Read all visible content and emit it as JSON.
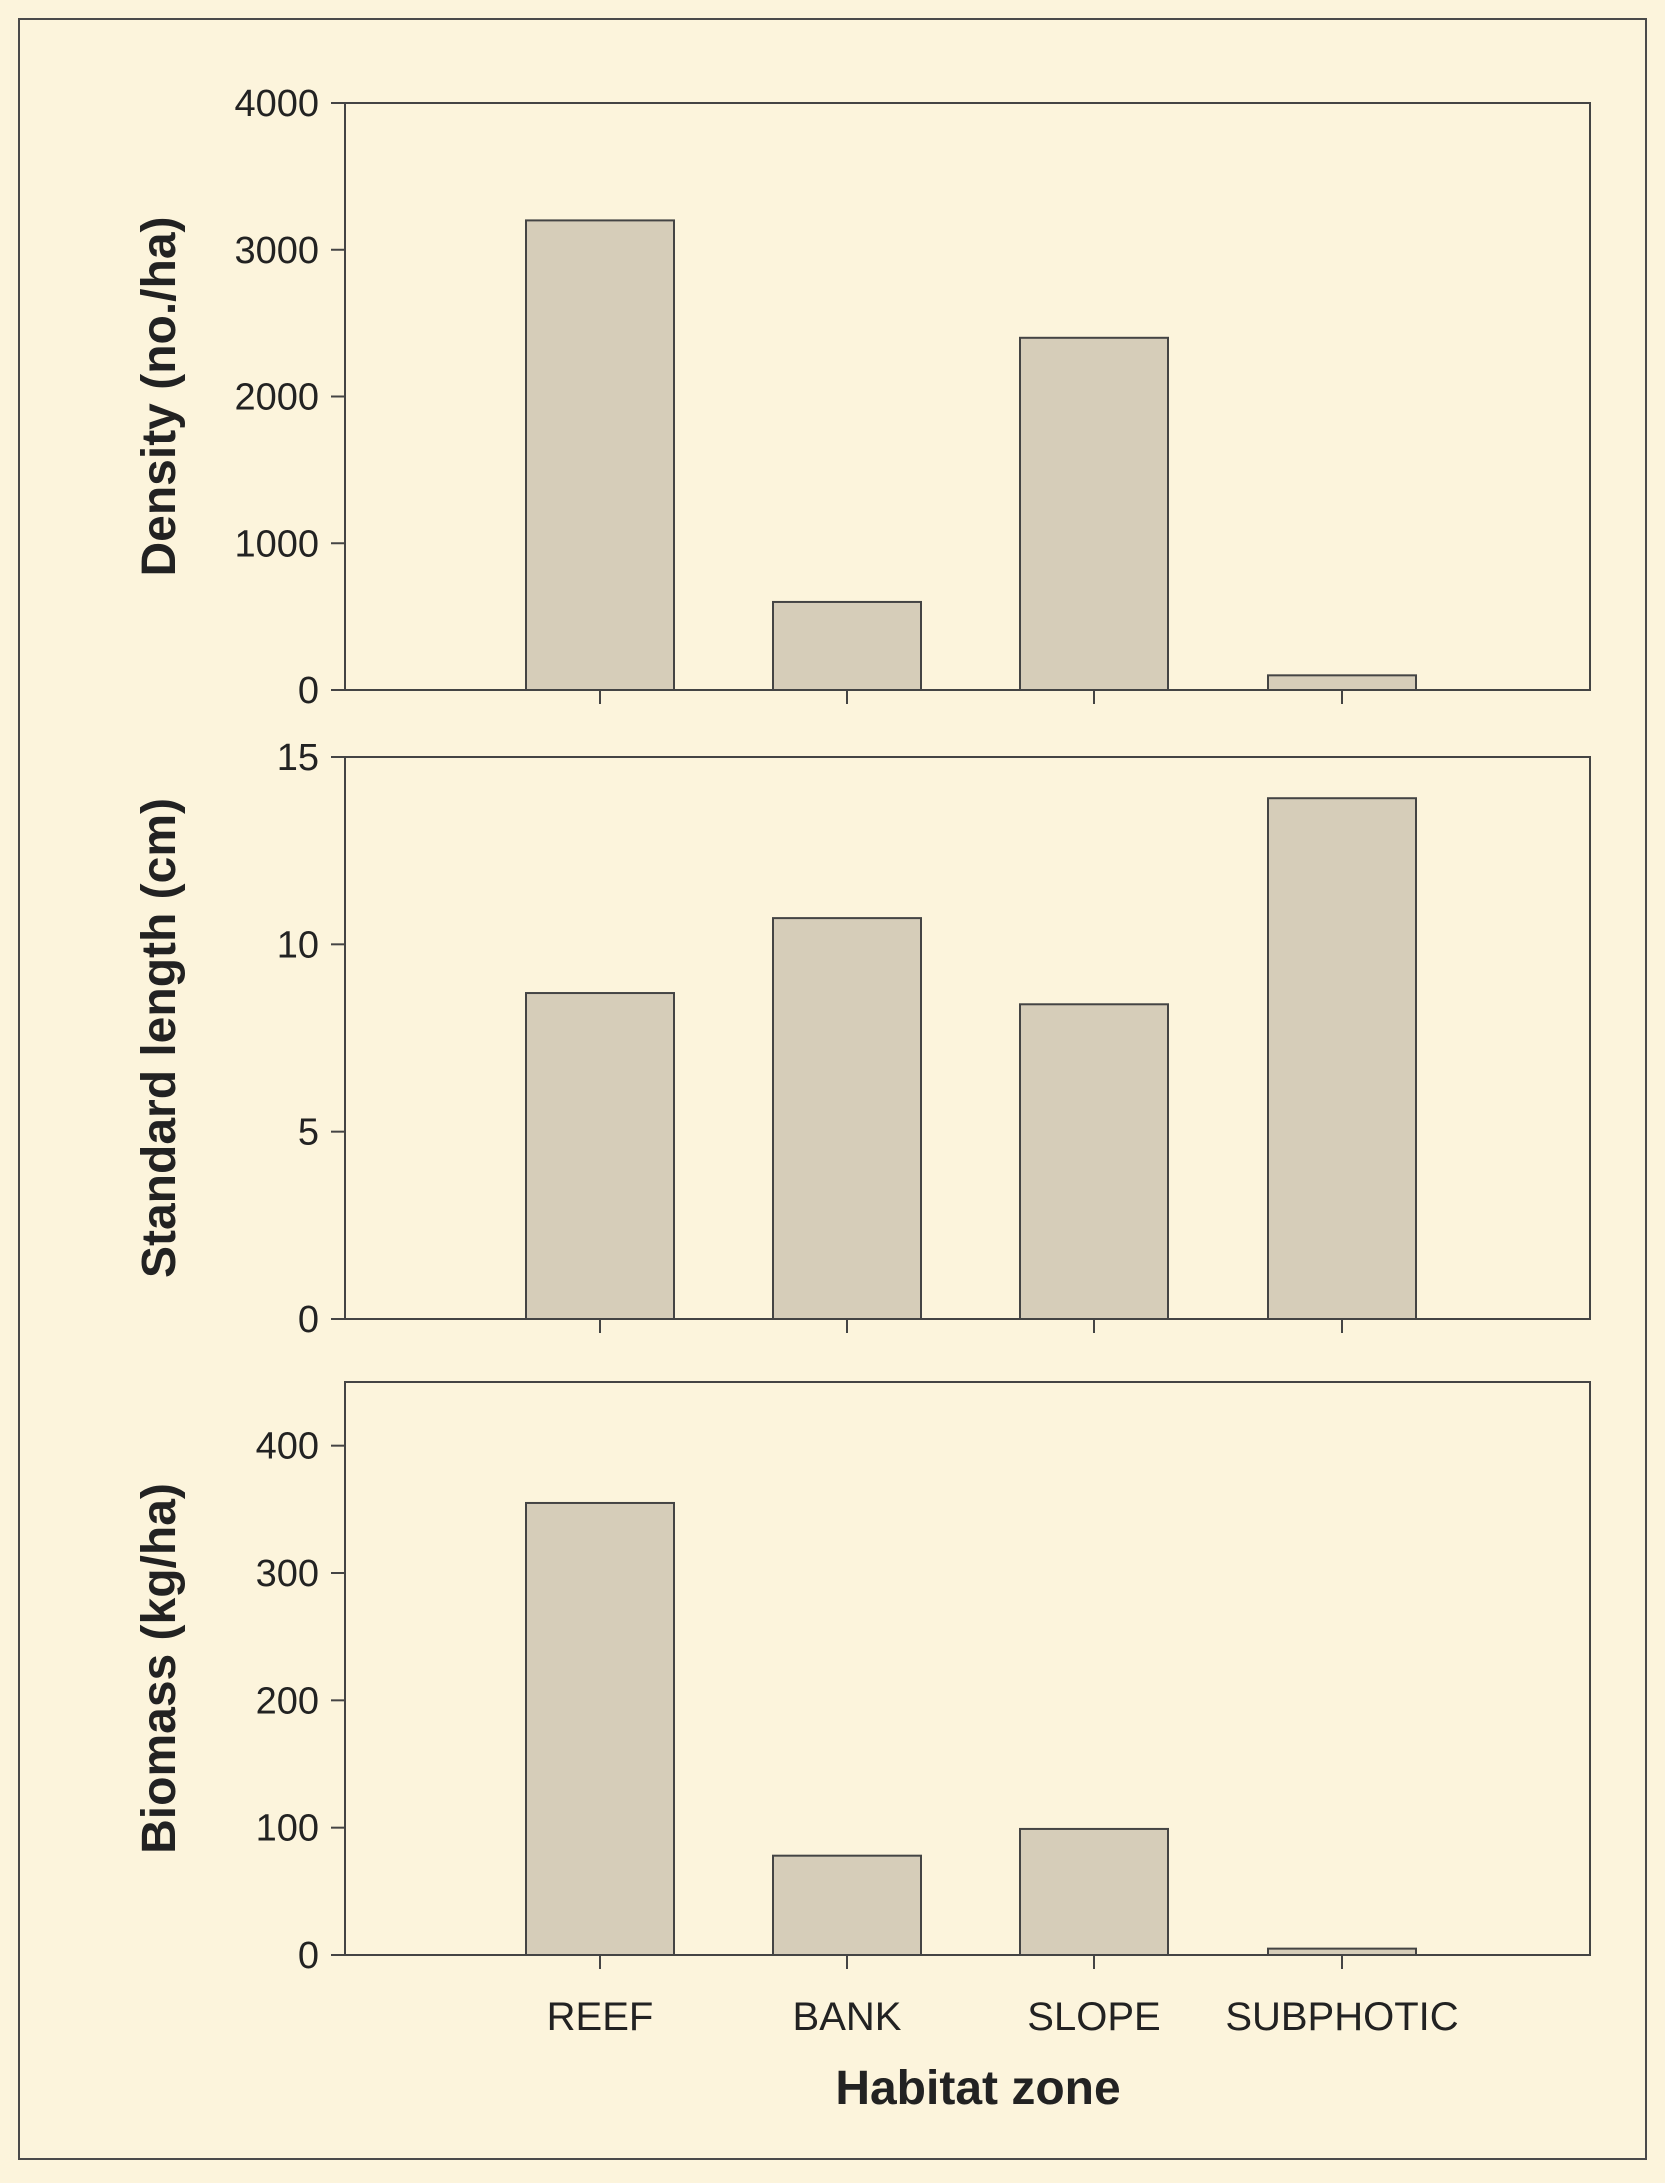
{
  "colors": {
    "background": "#fcf4dc",
    "bar_fill": "#d6cdb9",
    "bar_stroke": "#444444",
    "axis": "#444444"
  },
  "xlabel": "Habitat zone",
  "categories": [
    "REEF",
    "BANK",
    "SLOPE",
    "SUBPHOTIC"
  ],
  "chart_data": [
    {
      "type": "bar",
      "categories": [
        "REEF",
        "BANK",
        "SLOPE",
        "SUBPHOTIC"
      ],
      "values": [
        3200,
        600,
        2400,
        100
      ],
      "ylabel": "Density (no./ha)",
      "ylim": [
        0,
        4000
      ],
      "yticks": [
        0,
        1000,
        2000,
        3000,
        4000
      ],
      "xlabel": "",
      "grid": false
    },
    {
      "type": "bar",
      "categories": [
        "REEF",
        "BANK",
        "SLOPE",
        "SUBPHOTIC"
      ],
      "values": [
        8.7,
        10.7,
        8.4,
        13.9
      ],
      "ylabel": "Standard length (cm)",
      "ylim": [
        0,
        15
      ],
      "yticks": [
        0,
        5,
        10,
        15
      ],
      "xlabel": "",
      "grid": false
    },
    {
      "type": "bar",
      "categories": [
        "REEF",
        "BANK",
        "SLOPE",
        "SUBPHOTIC"
      ],
      "values": [
        355,
        78,
        99,
        5
      ],
      "ylabel": "Biomass (kg/ha)",
      "ylim": [
        0,
        450
      ],
      "yticks": [
        0,
        100,
        200,
        300,
        400
      ],
      "xlabel": "Habitat zone",
      "grid": false
    }
  ]
}
